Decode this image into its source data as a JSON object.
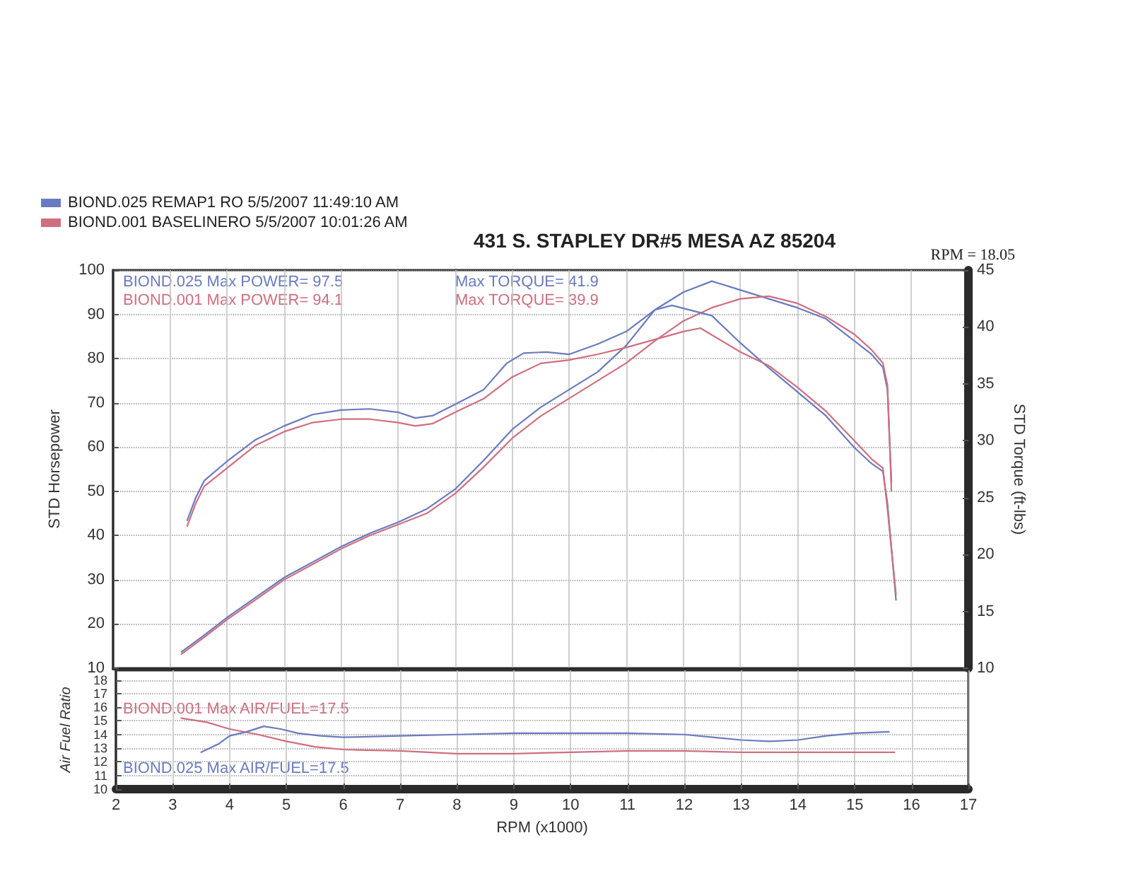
{
  "chart_data": [
    {
      "type": "line",
      "title": "431 S. STAPLEY DR#5 MESA AZ 85204",
      "ylabel": "STD Horsepower",
      "y2label": "STD Torque (ft-lbs)",
      "xlim": [
        2,
        17
      ],
      "xticks": [
        2,
        3,
        4,
        5,
        6,
        7,
        8,
        9,
        10,
        11,
        12,
        13,
        14,
        15,
        16,
        17
      ],
      "ylim": [
        10,
        100
      ],
      "yticks": [
        10,
        20,
        30,
        40,
        50,
        60,
        70,
        80,
        90,
        100
      ],
      "y2lim": [
        10,
        45
      ],
      "y2ticks": [
        10,
        15,
        20,
        25,
        30,
        35,
        40,
        45
      ],
      "tick_labels": "y",
      "grid": true,
      "legend": "top left",
      "annotations": [
        "BIOND.025 Max POWER= 97.5",
        "BIOND.001 Max POWER= 94.1",
        "Max TORQUE= 41.9",
        "Max TORQUE= 39.9",
        "RPM = 18.05"
      ],
      "series": [
        {
          "name": "BIOND.025 REMAP1 RO 5/5/2007 11:49:10 AM",
          "color": "#6a7bbf",
          "x": [
            3.2,
            3.6,
            4,
            4.5,
            5,
            5.5,
            6,
            6.5,
            7,
            7.5,
            8,
            8.5,
            9,
            9.5,
            10,
            10.5,
            11,
            11.5,
            12,
            12.5,
            13,
            13.5,
            14,
            14.5,
            15,
            15.3,
            15.5,
            15.58,
            15.65
          ],
          "values": [
            13.7,
            17.5,
            21.5,
            26,
            30.5,
            34,
            37.5,
            40.5,
            43,
            46,
            50.5,
            57,
            64,
            69,
            73,
            77,
            83,
            91,
            95,
            97.5,
            95.5,
            93.5,
            91.5,
            89,
            84,
            81,
            78,
            73,
            52
          ]
        },
        {
          "name": "BIOND.001 BASELINERO 5/5/2007 10:01:26 AM",
          "color": "#cf6f7f",
          "x": [
            3.2,
            3.6,
            4,
            4.5,
            5,
            5.5,
            6,
            6.5,
            7,
            7.5,
            8,
            8.5,
            9,
            9.5,
            10,
            10.5,
            11,
            11.5,
            12,
            12.5,
            13,
            13.5,
            14,
            14.5,
            15,
            15.3,
            15.5,
            15.58,
            15.65
          ],
          "values": [
            13.2,
            17,
            21,
            25.5,
            30,
            33.5,
            37,
            40,
            42.5,
            45,
            49.5,
            55.5,
            62,
            67,
            71,
            75,
            79,
            84,
            88.5,
            91.5,
            93.5,
            94.1,
            92.5,
            89.5,
            85.5,
            82,
            79,
            74,
            50
          ]
        },
        {
          "color": "#6a7bbf",
          "axis": "y2",
          "x": [
            3.3,
            3.45,
            3.6,
            4,
            4.5,
            5,
            5.5,
            6,
            6.5,
            7,
            7.3,
            7.6,
            8,
            8.5,
            8.9,
            9.2,
            9.6,
            10,
            10.5,
            11,
            11.5,
            11.8,
            12.5,
            13,
            13.5,
            14,
            14.5,
            15,
            15.3,
            15.5,
            15.58,
            15.73
          ],
          "values": [
            23,
            25,
            26.5,
            28.2,
            30.1,
            31.3,
            32.3,
            32.7,
            32.8,
            32.5,
            32,
            32.2,
            33.2,
            34.5,
            36.8,
            37.7,
            37.8,
            37.6,
            38.5,
            39.6,
            41.5,
            41.9,
            41,
            38.6,
            36.4,
            34.3,
            32.2,
            29.4,
            28,
            27.3,
            24.5,
            16
          ]
        },
        {
          "color": "#cf6f7f",
          "axis": "y2",
          "x": [
            3.3,
            3.45,
            3.6,
            4,
            4.5,
            5,
            5.5,
            6,
            6.5,
            7,
            7.3,
            7.6,
            8,
            8.5,
            9,
            9.5,
            10,
            10.5,
            11,
            11.5,
            12,
            12.3,
            13,
            13.5,
            14,
            14.5,
            15,
            15.3,
            15.5,
            15.58,
            15.73
          ],
          "values": [
            22.5,
            24.5,
            26,
            27.6,
            29.6,
            30.8,
            31.6,
            31.9,
            31.9,
            31.6,
            31.3,
            31.5,
            32.5,
            33.7,
            35.6,
            36.8,
            37.1,
            37.6,
            38.2,
            38.9,
            39.6,
            39.9,
            37.8,
            36.6,
            34.7,
            32.6,
            30,
            28.4,
            27.6,
            24,
            16.5
          ]
        }
      ]
    },
    {
      "type": "line",
      "xlabel": "RPM (x1000)",
      "ylabel": "Air Fuel Ratio",
      "xlim": [
        2,
        17
      ],
      "xticks": [
        2,
        3,
        4,
        5,
        6,
        7,
        8,
        9,
        10,
        11,
        12,
        13,
        14,
        15,
        16,
        17
      ],
      "ylim": [
        10,
        18.7
      ],
      "yticks": [
        10,
        11,
        12,
        13,
        14,
        15,
        16,
        17,
        18
      ],
      "grid": true,
      "annotations": [
        "BIOND.001 Max AIR/FUEL=17.5",
        "BIOND.025 Max AIR/FUEL=17.5"
      ],
      "series": [
        {
          "color": "#cf6f7f",
          "x": [
            3.15,
            3.6,
            4,
            4.5,
            5,
            5.5,
            6,
            7,
            8,
            9,
            10,
            11,
            12,
            13,
            14,
            15,
            15.7
          ],
          "values": [
            15.2,
            14.9,
            14.4,
            14,
            13.5,
            13.1,
            12.9,
            12.8,
            12.6,
            12.6,
            12.7,
            12.8,
            12.8,
            12.7,
            12.7,
            12.7,
            12.7
          ]
        },
        {
          "color": "#6a7bbf",
          "x": [
            3.5,
            3.8,
            4,
            4.3,
            4.6,
            4.9,
            5.2,
            5.6,
            6,
            7,
            8,
            9,
            10,
            11,
            12,
            12.5,
            13,
            13.5,
            14,
            14.5,
            15,
            15.6
          ],
          "values": [
            12.7,
            13.3,
            13.9,
            14.2,
            14.6,
            14.4,
            14.1,
            13.9,
            13.8,
            13.9,
            14,
            14.1,
            14.1,
            14.1,
            14,
            13.8,
            13.6,
            13.5,
            13.6,
            13.9,
            14.1,
            14.2
          ]
        }
      ]
    }
  ]
}
